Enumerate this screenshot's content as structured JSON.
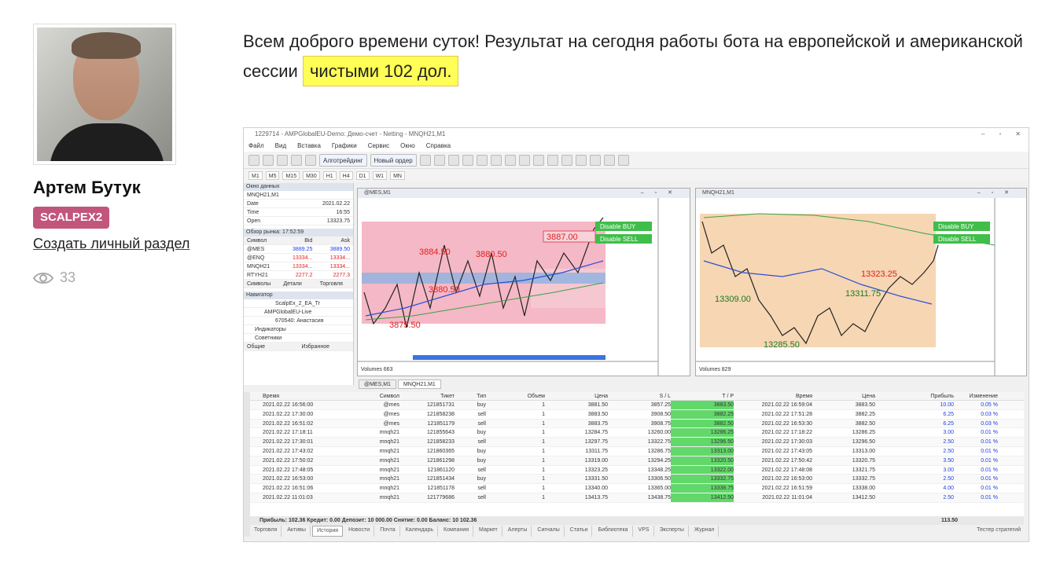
{
  "profile": {
    "name": "Артем Бутук",
    "badge": "SCALPEX2",
    "create_link": "Создать личный раздел",
    "views": "33"
  },
  "post": {
    "text_before": "Всем доброго времени суток! Результат на сегодня работы бота на европейской и американской сессии ",
    "highlight": "чистыми 102 дол."
  },
  "terminal": {
    "title": "1229714 - AMPGlobalEU-Demo: Демо-счет - Netting - MNQH21,M1",
    "menu": [
      "Файл",
      "Вид",
      "Вставка",
      "Графики",
      "Сервис",
      "Окно",
      "Справка"
    ],
    "toolbar": {
      "algo": "Алготрейдинг",
      "new_order": "Новый ордер"
    },
    "timeframes": [
      "M1",
      "M5",
      "M15",
      "M30",
      "H1",
      "H4",
      "D1",
      "W1",
      "MN"
    ],
    "data_window": {
      "title": "Окно данных",
      "symbol": "MNQH21,M1",
      "rows": [
        [
          "Date",
          "2021.02.22"
        ],
        [
          "Time",
          "16:55"
        ],
        [
          "Open",
          "13323.75"
        ]
      ]
    },
    "market_watch": {
      "title": "Обзор рынка: 17:52:59",
      "headers": [
        "Символ",
        "Bid",
        "Ask"
      ],
      "rows": [
        [
          "@MES",
          "3889.25",
          "3889.50"
        ],
        [
          "@ENQ",
          "13334...",
          "13334..."
        ],
        [
          "MNQH21",
          "13334...",
          "13334..."
        ],
        [
          "RTYH21",
          "2277.2",
          "2277.3"
        ]
      ],
      "tabs": [
        "Символы",
        "Детали",
        "Торговля"
      ]
    },
    "navigator": {
      "title": "Навигатор",
      "items": [
        "ScalpEx_2_EA_Tr",
        "AMPGlobalEU-Live",
        "670540: Анастасия",
        "Индикаторы",
        "Советники"
      ],
      "tabs": [
        "Общие",
        "Избранное"
      ]
    },
    "chart1": {
      "title": "@MES,M1",
      "labels": [
        "3887.00",
        "3884.50",
        "3880.50",
        "3880.50",
        "3875.50"
      ],
      "buttons": [
        "Disable BUY",
        "Disable SELL"
      ],
      "volumes": "Volumes 663"
    },
    "chart2": {
      "title": "MNQH21,M1",
      "labels": [
        "13323.25",
        "13311.75",
        "13309.00",
        "13285.50"
      ],
      "buttons": [
        "Disable BUY",
        "Disable SELL"
      ],
      "volumes": "Volumes 829"
    },
    "chart_tabs": [
      "@MES,M1",
      "MNQH21,M1"
    ],
    "table": {
      "headers": [
        "Время",
        "Символ",
        "Тикет",
        "Тип",
        "Объем",
        "Цена",
        "S / L",
        "T / P",
        "Время",
        "Цена",
        "Прибыль",
        "Изменение"
      ],
      "rows": [
        [
          "2021.02.22 16:56:00",
          "@mes",
          "121851731",
          "buy",
          "1",
          "3881.50",
          "3857.25",
          "3883.50",
          "2021.02.22 16:59:04",
          "3883.50",
          "10.00",
          "0.05 %"
        ],
        [
          "2021.02.22 17:30:00",
          "@mes",
          "121858238",
          "sell",
          "1",
          "3883.50",
          "3908.50",
          "3882.25",
          "2021.02.22 17:51:28",
          "3882.25",
          "6.25",
          "0.03 %"
        ],
        [
          "2021.02.22 16:51:02",
          "@mes",
          "121851179",
          "sell",
          "1",
          "3883.75",
          "3908.75",
          "3882.50",
          "2021.02.22 16:53:30",
          "3882.50",
          "6.25",
          "0.03 %"
        ],
        [
          "2021.02.22 17:18:11",
          "mnqh21",
          "121855643",
          "buy",
          "1",
          "13284.75",
          "13260.00",
          "13286.25",
          "2021.02.22 17:18:22",
          "13286.25",
          "3.00",
          "0.01 %"
        ],
        [
          "2021.02.22 17:30:01",
          "mnqh21",
          "121858233",
          "sell",
          "1",
          "13297.75",
          "13322.75",
          "13296.50",
          "2021.02.22 17:30:03",
          "13296.50",
          "2.50",
          "0.01 %"
        ],
        [
          "2021.02.22 17:43:02",
          "mnqh21",
          "121860365",
          "buy",
          "1",
          "13311.75",
          "13286.75",
          "13313.00",
          "2021.02.22 17:43:05",
          "13313.00",
          "2.50",
          "0.01 %"
        ],
        [
          "2021.02.22 17:50:02",
          "mnqh21",
          "121861298",
          "buy",
          "1",
          "13319.00",
          "13294.25",
          "13320.50",
          "2021.02.22 17:50:42",
          "13320.75",
          "3.50",
          "0.01 %"
        ],
        [
          "2021.02.22 17:48:05",
          "mnqh21",
          "121861120",
          "sell",
          "1",
          "13323.25",
          "13348.25",
          "13322.00",
          "2021.02.22 17:48:08",
          "13321.75",
          "3.00",
          "0.01 %"
        ],
        [
          "2021.02.22 16:53:00",
          "mnqh21",
          "121851434",
          "buy",
          "1",
          "13331.50",
          "13306.50",
          "13332.75",
          "2021.02.22 16:53:00",
          "13332.75",
          "2.50",
          "0.01 %"
        ],
        [
          "2021.02.22 16:51:06",
          "mnqh21",
          "121851178",
          "sell",
          "1",
          "13340.00",
          "13365.00",
          "13338.75",
          "2021.02.22 16:51:59",
          "13338.00",
          "4.00",
          "0.01 %"
        ],
        [
          "2021.02.22 11:01:03",
          "mnqh21",
          "121779686",
          "sell",
          "1",
          "13413.75",
          "13438.75",
          "13412.50",
          "2021.02.22 11:01:04",
          "13412.50",
          "2.50",
          "0.01 %"
        ]
      ],
      "summary": "Прибыль: 102.36  Кредит: 0.00  Депозит: 10 000.00  Снятие: 0.00  Баланс: 10 102.36",
      "total": "113.50"
    },
    "bottom_tabs": [
      "Торговля",
      "Активы",
      "История",
      "Новости",
      "Почта",
      "Календарь",
      "Компания",
      "Маркет",
      "Алерты",
      "Сигналы",
      "Статьи",
      "Библиотека",
      "VPS",
      "Эксперты",
      "Журнал"
    ],
    "tester": "Тестер стратегий"
  },
  "colors": {
    "badge": "#c2557c",
    "highlight": "#ffff55",
    "tp_cell": "#62d86a"
  }
}
